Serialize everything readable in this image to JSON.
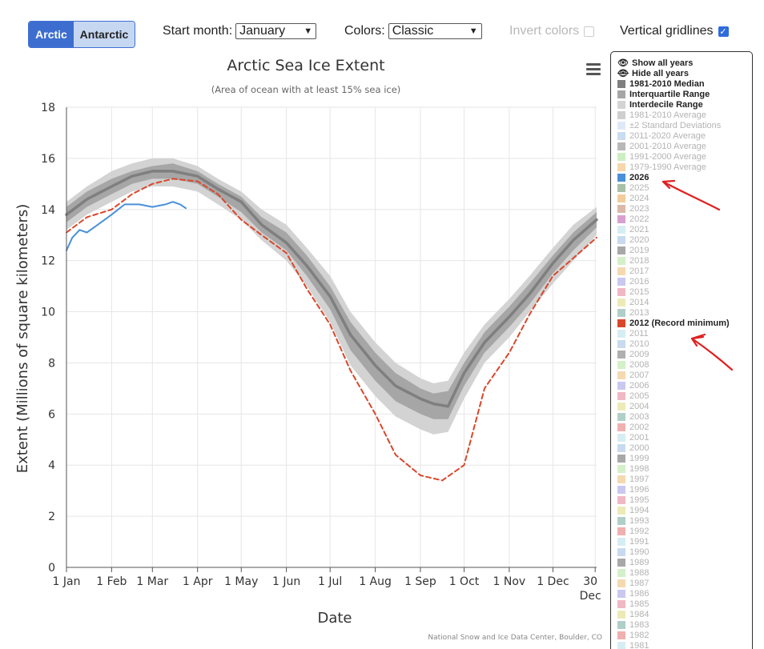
{
  "toolbar": {
    "hemisphere_options": [
      "Arctic",
      "Antarctic"
    ],
    "hemisphere_selected": "Arctic",
    "start_month_label": "Start month:",
    "start_month_value": "January",
    "colors_label": "Colors:",
    "colors_value": "Classic",
    "invert_colors_label": "Invert colors",
    "invert_colors_checked": false,
    "vertical_gridlines_label": "Vertical gridlines",
    "vertical_gridlines_checked": true
  },
  "legend": {
    "show_all": "Show all years",
    "hide_all": "Hide all years",
    "items": [
      {
        "label": "1981-2010 Median",
        "color": "#7f7f7f",
        "shown": true
      },
      {
        "label": "Interquartile Range",
        "color": "#a6a6a6",
        "shown": true
      },
      {
        "label": "Interdecile Range",
        "color": "#d3d3d3",
        "shown": true
      },
      {
        "label": "1981-2010 Average",
        "color": "#cfcfcf",
        "shown": false
      },
      {
        "label": "±2 Standard Deviations",
        "color": "#dfe9f6",
        "shown": false
      },
      {
        "label": "2011-2020 Average",
        "color": "#c9dcf0",
        "shown": false
      },
      {
        "label": "2001-2010 Average",
        "color": "#b8b8b8",
        "shown": false
      },
      {
        "label": "1991-2000 Average",
        "color": "#cdeec2",
        "shown": false
      },
      {
        "label": "1979-1990 Average",
        "color": "#f6d7ac",
        "shown": false
      },
      {
        "label": "2026",
        "color": "#4a90d9",
        "shown": true
      },
      {
        "label": "2025",
        "color": "#a8c0a8",
        "shown": false
      },
      {
        "label": "2024",
        "color": "#f2cc9c",
        "shown": false
      },
      {
        "label": "2023",
        "color": "#dcb8a8",
        "shown": false
      },
      {
        "label": "2022",
        "color": "#d8a0d0",
        "shown": false
      },
      {
        "label": "2021",
        "color": "#d6eef2",
        "shown": false
      },
      {
        "label": "2020",
        "color": "#c8daf0",
        "shown": false
      },
      {
        "label": "2019",
        "color": "#a8a8a8",
        "shown": false
      },
      {
        "label": "2018",
        "color": "#d4f0c8",
        "shown": false
      },
      {
        "label": "2017",
        "color": "#f5d9b0",
        "shown": false
      },
      {
        "label": "2016",
        "color": "#c8c8f0",
        "shown": false
      },
      {
        "label": "2015",
        "color": "#f0b8c4",
        "shown": false
      },
      {
        "label": "2014",
        "color": "#ecebb8",
        "shown": false
      },
      {
        "label": "2013",
        "color": "#b0cfc8",
        "shown": false
      },
      {
        "label": "2012 (Record minimum)",
        "color": "#d9472b",
        "shown": true
      },
      {
        "label": "2011",
        "color": "#d6eef2",
        "shown": false
      },
      {
        "label": "2010",
        "color": "#c8daf0",
        "shown": false
      },
      {
        "label": "2009",
        "color": "#b0b0b0",
        "shown": false
      },
      {
        "label": "2008",
        "color": "#d4f0c8",
        "shown": false
      },
      {
        "label": "2007",
        "color": "#f5d9b0",
        "shown": false
      },
      {
        "label": "2006",
        "color": "#c8c8f0",
        "shown": false
      },
      {
        "label": "2005",
        "color": "#f0b8c4",
        "shown": false
      },
      {
        "label": "2004",
        "color": "#ecebb8",
        "shown": false
      },
      {
        "label": "2003",
        "color": "#b0cfc8",
        "shown": false
      },
      {
        "label": "2002",
        "color": "#f0b0b0",
        "shown": false
      },
      {
        "label": "2001",
        "color": "#d6eef2",
        "shown": false
      },
      {
        "label": "2000",
        "color": "#c8daf0",
        "shown": false
      },
      {
        "label": "1999",
        "color": "#a8a8a8",
        "shown": false
      },
      {
        "label": "1998",
        "color": "#d4f0c8",
        "shown": false
      },
      {
        "label": "1997",
        "color": "#f5d9b0",
        "shown": false
      },
      {
        "label": "1996",
        "color": "#c8c8f0",
        "shown": false
      },
      {
        "label": "1995",
        "color": "#f0b8c4",
        "shown": false
      },
      {
        "label": "1994",
        "color": "#ecebb8",
        "shown": false
      },
      {
        "label": "1993",
        "color": "#b0cfc8",
        "shown": false
      },
      {
        "label": "1992",
        "color": "#f0b0b0",
        "shown": false
      },
      {
        "label": "1991",
        "color": "#d6eef2",
        "shown": false
      },
      {
        "label": "1990",
        "color": "#c8daf0",
        "shown": false
      },
      {
        "label": "1989",
        "color": "#a8a8a8",
        "shown": false
      },
      {
        "label": "1988",
        "color": "#d4f0c8",
        "shown": false
      },
      {
        "label": "1987",
        "color": "#f5d9b0",
        "shown": false
      },
      {
        "label": "1986",
        "color": "#c8c8f0",
        "shown": false
      },
      {
        "label": "1985",
        "color": "#f0b8c4",
        "shown": false
      },
      {
        "label": "1984",
        "color": "#ecebb8",
        "shown": false
      },
      {
        "label": "1983",
        "color": "#b0cfc8",
        "shown": false
      },
      {
        "label": "1982",
        "color": "#f0b0b0",
        "shown": false
      },
      {
        "label": "1981",
        "color": "#d6eef2",
        "shown": false
      }
    ]
  },
  "chart_data": {
    "type": "line",
    "title": "Arctic Sea Ice Extent",
    "subtitle": "(Area of ocean with at least 15% sea ice)",
    "xlabel": "Date",
    "ylabel": "Extent (Millions of square kilometers)",
    "ylim": [
      0,
      18
    ],
    "yticks": [
      0,
      2,
      4,
      6,
      8,
      10,
      12,
      14,
      16,
      18
    ],
    "xlim": [
      "Jan 1",
      "Dec 31"
    ],
    "xticks": [
      "1 Jan",
      "1 Feb",
      "1 Mar",
      "1 Apr",
      "1 May",
      "1 Jun",
      "1 Jul",
      "1 Aug",
      "1 Sep",
      "1 Oct",
      "1 Nov",
      "1 Dec",
      "30 Dec"
    ],
    "grid": {
      "horizontal": true,
      "vertical": true
    },
    "credit": "National Snow and Ice Data Center, Boulder, CO",
    "series": [
      {
        "name": "1981-2010 Median",
        "color": "#7f7f7f",
        "x": [
          "Jan 1",
          "Jan 15",
          "Feb 1",
          "Feb 15",
          "Mar 1",
          "Mar 15",
          "Apr 1",
          "Apr 15",
          "May 1",
          "May 15",
          "Jun 1",
          "Jun 15",
          "Jul 1",
          "Jul 15",
          "Aug 1",
          "Aug 15",
          "Sep 1",
          "Sep 10",
          "Sep 20",
          "Oct 1",
          "Oct 15",
          "Nov 1",
          "Nov 15",
          "Dec 1",
          "Dec 15",
          "Dec 31"
        ],
        "values": [
          13.8,
          14.4,
          14.9,
          15.3,
          15.5,
          15.5,
          15.3,
          14.8,
          14.3,
          13.4,
          12.7,
          11.8,
          10.6,
          9.1,
          7.9,
          7.1,
          6.6,
          6.4,
          6.3,
          7.6,
          8.8,
          9.8,
          10.7,
          11.9,
          12.8,
          13.6
        ]
      },
      {
        "name": "Interquartile Range",
        "color": "#a6a6a6",
        "x": [
          "Jan 1",
          "Jan 15",
          "Feb 1",
          "Feb 15",
          "Mar 1",
          "Mar 15",
          "Apr 1",
          "Apr 15",
          "May 1",
          "May 15",
          "Jun 1",
          "Jun 15",
          "Jul 1",
          "Jul 15",
          "Aug 1",
          "Aug 15",
          "Sep 1",
          "Sep 10",
          "Sep 20",
          "Oct 1",
          "Oct 15",
          "Nov 1",
          "Nov 15",
          "Dec 1",
          "Dec 15",
          "Dec 31"
        ],
        "low": [
          13.5,
          14.1,
          14.6,
          15.0,
          15.2,
          15.2,
          15.0,
          14.5,
          13.9,
          13.1,
          12.4,
          11.4,
          10.1,
          8.5,
          7.3,
          6.5,
          6.0,
          5.8,
          5.8,
          7.1,
          8.4,
          9.4,
          10.3,
          11.5,
          12.4,
          13.3
        ],
        "high": [
          14.1,
          14.7,
          15.2,
          15.5,
          15.7,
          15.8,
          15.5,
          15.0,
          14.5,
          13.7,
          13.1,
          12.2,
          11.0,
          9.6,
          8.4,
          7.6,
          7.0,
          6.8,
          6.9,
          8.0,
          9.2,
          10.2,
          11.1,
          12.2,
          13.1,
          13.9
        ]
      },
      {
        "name": "Interdecile Range",
        "color": "#d3d3d3",
        "x": [
          "Jan 1",
          "Jan 15",
          "Feb 1",
          "Feb 15",
          "Mar 1",
          "Mar 15",
          "Apr 1",
          "Apr 15",
          "May 1",
          "May 15",
          "Jun 1",
          "Jun 15",
          "Jul 1",
          "Jul 15",
          "Aug 1",
          "Aug 15",
          "Sep 1",
          "Sep 10",
          "Sep 20",
          "Oct 1",
          "Oct 15",
          "Nov 1",
          "Nov 15",
          "Dec 1",
          "Dec 15",
          "Dec 31"
        ],
        "low": [
          13.2,
          13.8,
          14.3,
          14.7,
          14.9,
          14.9,
          14.7,
          14.2,
          13.6,
          12.8,
          12.0,
          11.0,
          9.6,
          7.9,
          6.7,
          5.9,
          5.4,
          5.2,
          5.3,
          6.6,
          8.0,
          9.0,
          10.0,
          11.1,
          12.0,
          13.0
        ],
        "high": [
          14.3,
          14.9,
          15.5,
          15.8,
          16.0,
          16.0,
          15.7,
          15.2,
          14.7,
          14.0,
          13.4,
          12.5,
          11.4,
          10.0,
          8.8,
          8.0,
          7.4,
          7.2,
          7.3,
          8.4,
          9.5,
          10.5,
          11.4,
          12.5,
          13.4,
          14.1
        ]
      },
      {
        "name": "2026",
        "color": "#4a90d9",
        "x": [
          "Jan 1",
          "Jan 5",
          "Jan 10",
          "Jan 15",
          "Jan 20",
          "Feb 1",
          "Feb 10",
          "Feb 20",
          "Mar 1",
          "Mar 10",
          "Mar 15",
          "Mar 20",
          "Mar 24"
        ],
        "values": [
          12.4,
          12.9,
          13.2,
          13.1,
          13.3,
          13.8,
          14.2,
          14.2,
          14.1,
          14.2,
          14.3,
          14.2,
          14.05
        ]
      },
      {
        "name": "2012 (Record minimum)",
        "color": "#d9472b",
        "dash": true,
        "x": [
          "Jan 1",
          "Jan 15",
          "Feb 1",
          "Feb 15",
          "Mar 1",
          "Mar 15",
          "Apr 1",
          "Apr 15",
          "May 1",
          "May 15",
          "Jun 1",
          "Jun 15",
          "Jul 1",
          "Jul 15",
          "Aug 1",
          "Aug 15",
          "Sep 1",
          "Sep 16",
          "Oct 1",
          "Oct 15",
          "Nov 1",
          "Nov 15",
          "Dec 1",
          "Dec 15",
          "Dec 31"
        ],
        "values": [
          13.1,
          13.7,
          14.0,
          14.6,
          15.0,
          15.2,
          15.1,
          14.6,
          13.6,
          13.0,
          12.3,
          10.9,
          9.5,
          7.7,
          6.0,
          4.4,
          3.6,
          3.4,
          4.0,
          7.0,
          8.4,
          9.9,
          11.4,
          12.1,
          12.9
        ]
      }
    ]
  }
}
